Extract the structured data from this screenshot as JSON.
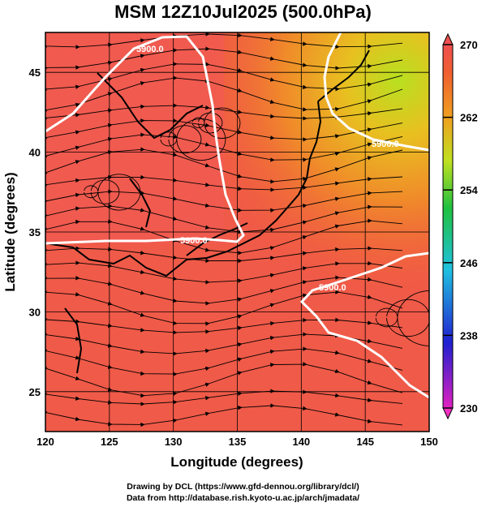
{
  "title": "MSM 12Z10Jul2025 (500.0hPa)",
  "map": {
    "x_axis_title": "Longitude (degrees)",
    "y_axis_title": "Latitude  (degrees)",
    "lon_range": [
      120,
      150
    ],
    "lat_range": [
      22.5,
      47.5
    ],
    "lon_ticks": [
      "120",
      "125",
      "130",
      "135",
      "140",
      "145",
      "150"
    ],
    "lat_ticks": [
      "25",
      "30",
      "35",
      "40",
      "45"
    ],
    "contour_label": "5900.0",
    "contour_color": "#ffffff",
    "colorbar": {
      "min": 230,
      "max": 270,
      "tick_labels": [
        "270",
        "262",
        "254",
        "246",
        "238",
        "230"
      ],
      "colors": [
        "#e020c0",
        "#2020d0",
        "#20c0e0",
        "#20c040",
        "#c0e020",
        "#f0a020",
        "#f06030",
        "#f05050"
      ]
    }
  },
  "credits": {
    "line1": "Drawing by DCL (https://www.gfd-dennou.org/library/dcl/)",
    "line2": "Data from http://database.rish.kyoto-u.ac.jp/arch/jmadata/"
  }
}
